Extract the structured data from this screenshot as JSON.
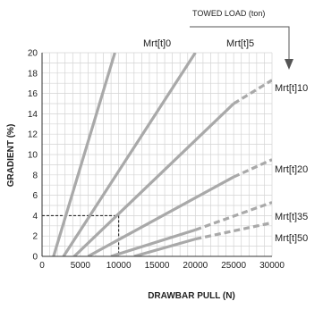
{
  "chart_data": {
    "type": "line",
    "xlabel": "DRAWBAR PULL (N)",
    "ylabel": "GRADIENT  (%)",
    "xlim": [
      0,
      30000
    ],
    "ylim": [
      0,
      20
    ],
    "x_ticks": [
      0,
      5000,
      10000,
      15000,
      20000,
      25000,
      30000
    ],
    "y_ticks": [
      0,
      2,
      4,
      6,
      8,
      10,
      12,
      14,
      16,
      18,
      20
    ],
    "grid": true,
    "annotation": {
      "label": "TOWED LOAD (ton)",
      "direction": "increasing towed load from left to right series"
    },
    "reference_lines": [
      {
        "x": 10000,
        "y": 4,
        "style": "dashed"
      }
    ],
    "series": [
      {
        "name": "Mrt[t]0",
        "points": [
          [
            1500,
            0
          ],
          [
            9500,
            20
          ]
        ],
        "dashed_from": null
      },
      {
        "name": "Mrt[t]5",
        "points": [
          [
            2800,
            0
          ],
          [
            20000,
            20
          ]
        ],
        "dashed_from": null
      },
      {
        "name": "Mrt[t]10",
        "points": [
          [
            4200,
            0
          ],
          [
            25000,
            15
          ],
          [
            30000,
            17.3
          ]
        ],
        "dashed_from": 25000
      },
      {
        "name": "Mrt[t]20",
        "points": [
          [
            6000,
            0
          ],
          [
            25000,
            7.8
          ],
          [
            30000,
            9.5
          ]
        ],
        "dashed_from": 25000
      },
      {
        "name": "Mrt[t]35",
        "points": [
          [
            9000,
            0
          ],
          [
            20000,
            2.6
          ],
          [
            30000,
            5.3
          ]
        ],
        "dashed_from": 20000
      },
      {
        "name": "Mrt[t]50",
        "points": [
          [
            12000,
            0
          ],
          [
            20000,
            1.7
          ],
          [
            30000,
            3.3
          ]
        ],
        "dashed_from": 20000
      }
    ]
  }
}
